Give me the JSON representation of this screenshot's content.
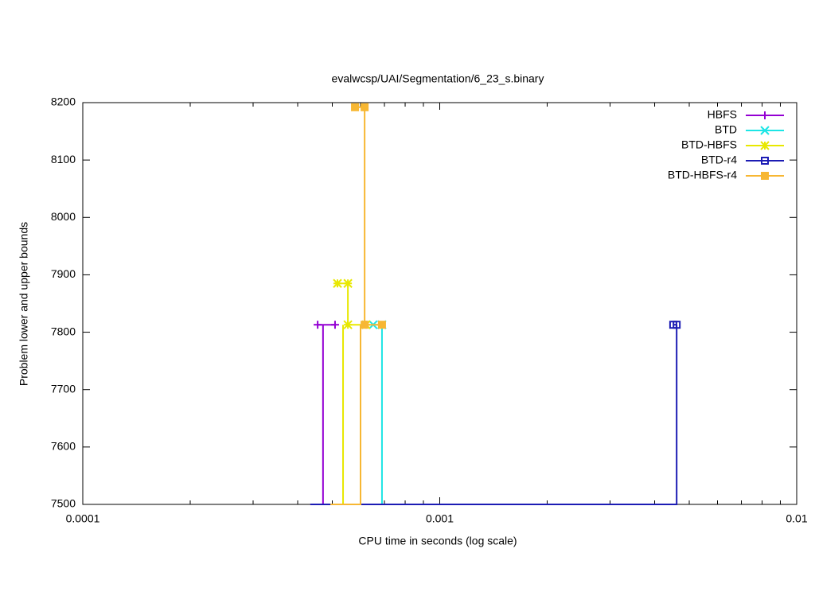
{
  "chart_data": {
    "type": "line",
    "title": "evalwcsp/UAI/Segmentation/6_23_s.binary",
    "xlabel": "CPU time in seconds (log scale)",
    "ylabel": "Problem lower and upper bounds",
    "xlog": true,
    "xlim": [
      0.0001,
      0.01
    ],
    "xticks": [
      0.0001,
      0.001,
      0.01
    ],
    "xminorticks": [
      0.0002,
      0.0003,
      0.0004,
      0.0005,
      0.0006,
      0.0007,
      0.0008,
      0.0009,
      0.002,
      0.003,
      0.004,
      0.005,
      0.006,
      0.007,
      0.008,
      0.009
    ],
    "ylim": [
      7500,
      8200
    ],
    "yticks": [
      7500,
      7600,
      7700,
      7800,
      7900,
      8000,
      8100,
      8200
    ],
    "legend": "top-right",
    "series": [
      {
        "name": "HBFS",
        "color": "#9400d3",
        "marker": "plus",
        "x": [
          0.000455,
          0.000509
        ],
        "values": [
          7813,
          7813
        ],
        "lower_x": [
          0.000434,
          0.000471,
          0.000471
        ],
        "lower_values": [
          7500,
          7500,
          7813
        ]
      },
      {
        "name": "BTD",
        "color": "#1de5e5",
        "marker": "cross",
        "x": [
          0.000651,
          0.000689
        ],
        "values": [
          7813,
          7813
        ],
        "lower_x": [
          0.000689,
          0.000689
        ],
        "lower_values": [
          7500,
          7813
        ]
      },
      {
        "name": "BTD-HBFS",
        "color": "#e8e800",
        "marker": "star",
        "x": [
          0.000517,
          0.000553,
          0.000553,
          0.000622
        ],
        "values": [
          7885,
          7885,
          7813,
          7813
        ],
        "lower_x": [
          0.000494,
          0.000536,
          0.000536
        ],
        "lower_values": [
          7500,
          7500,
          7813
        ]
      },
      {
        "name": "BTD-r4",
        "color": "#1c1cb4",
        "marker": "square",
        "x": [
          0.00451,
          0.00461
        ],
        "values": [
          7813,
          7813
        ],
        "lower_x": [
          0.000434,
          0.00461,
          0.00461
        ],
        "lower_values": [
          7500,
          7500,
          7813
        ]
      },
      {
        "name": "BTD-HBFS-r4",
        "color": "#f7b733",
        "marker": "filled-square",
        "x": [
          0.000579,
          0.000616,
          0.000616,
          0.000689
        ],
        "values": [
          8192,
          8192,
          7813,
          7813
        ],
        "lower_x": [
          0.000494,
          0.0006,
          0.0006
        ],
        "lower_values": [
          7500,
          7500,
          7813
        ]
      }
    ]
  }
}
